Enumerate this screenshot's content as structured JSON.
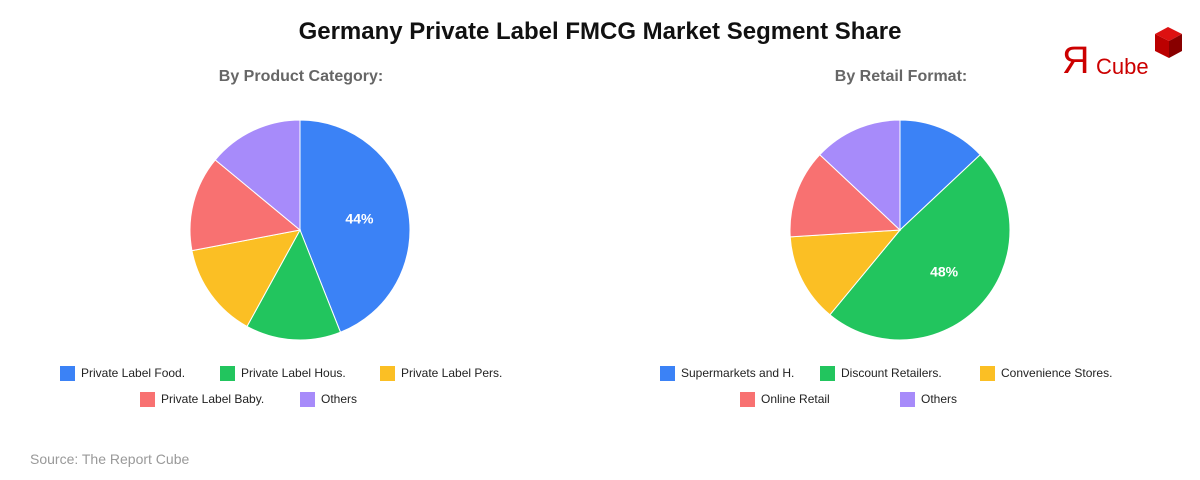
{
  "header": {
    "title": "Germany Private Label FMCG Market Segment Share"
  },
  "logo": {
    "text_r": "Я",
    "text_cube": "Cube"
  },
  "source": "Source: The Report Cube",
  "chart_data": [
    {
      "type": "pie",
      "title": "By Product Category:",
      "categories": [
        "Private Label Food.",
        "Private Label Hous.",
        "Private Label Pers.",
        "Private Label Baby.",
        "Others"
      ],
      "values": [
        44,
        14,
        14,
        14,
        14
      ],
      "colors": [
        "#3b82f6",
        "#22c55e",
        "#fbbf24",
        "#f87171",
        "#a78bfa"
      ],
      "data_labels": [
        "44%",
        "",
        "",
        "",
        ""
      ],
      "start_angle": 0,
      "direction": "clockwise",
      "legend_position": "bottom"
    },
    {
      "type": "pie",
      "title": "By Retail Format:",
      "categories": [
        "Supermarkets and H.",
        "Discount Retailers.",
        "Convenience Stores.",
        "Online Retail",
        "Others"
      ],
      "values": [
        13,
        48,
        13,
        13,
        13
      ],
      "colors": [
        "#3b82f6",
        "#22c55e",
        "#fbbf24",
        "#f87171",
        "#a78bfa"
      ],
      "data_labels": [
        "",
        "48%",
        "",
        "",
        ""
      ],
      "start_angle": 0,
      "direction": "clockwise",
      "legend_position": "bottom"
    }
  ]
}
